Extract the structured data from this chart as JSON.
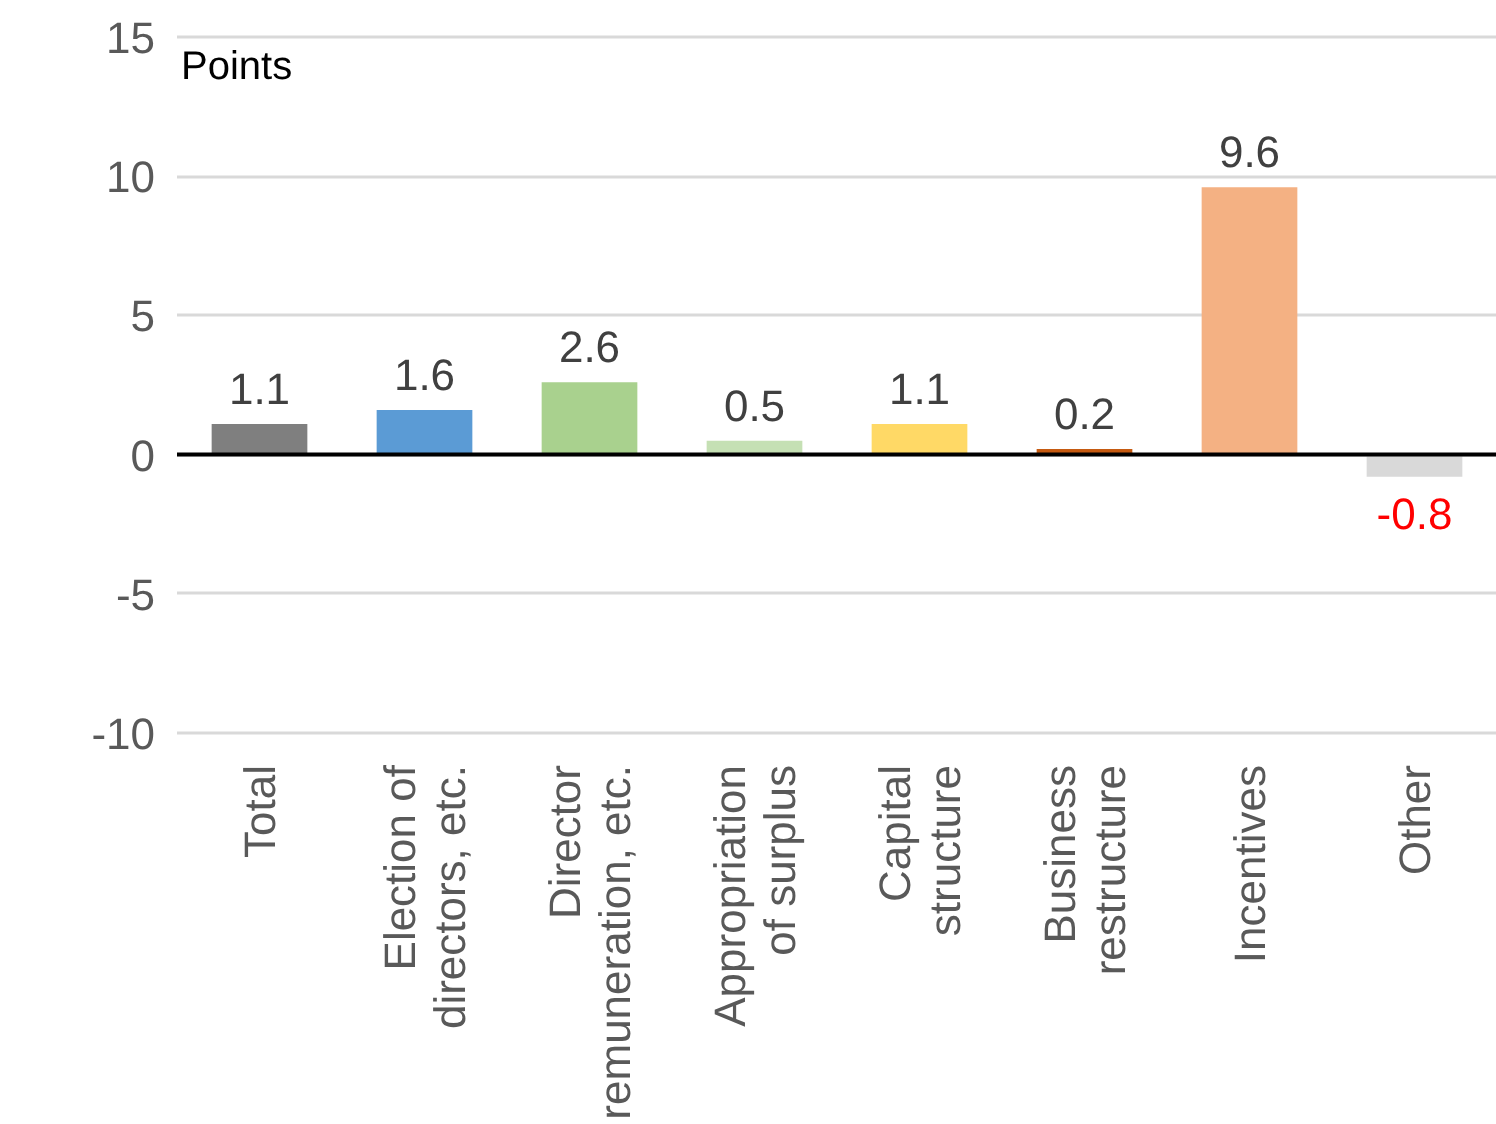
{
  "chart_data": {
    "type": "bar",
    "ylabel": "Points",
    "categories": [
      "Total",
      "Election of\ndirectors, etc.",
      "Director\nremuneration, etc.",
      "Appropriation\nof surplus",
      "Capital\nstructure",
      "Business\nrestructure",
      "Incentives",
      "Other"
    ],
    "values": [
      1.1,
      1.6,
      2.6,
      0.5,
      1.1,
      0.2,
      9.6,
      -0.8
    ],
    "colors": [
      "#7f7f7f",
      "#5b9bd5",
      "#a9d18e",
      "#c5e0b4",
      "#ffd966",
      "#c55a11",
      "#f4b183",
      "#d9d9d9"
    ],
    "ylim": [
      -10,
      15
    ],
    "yticks": [
      -10,
      -5,
      0,
      5,
      10,
      15
    ],
    "grid": "y",
    "data_labels": true
  }
}
